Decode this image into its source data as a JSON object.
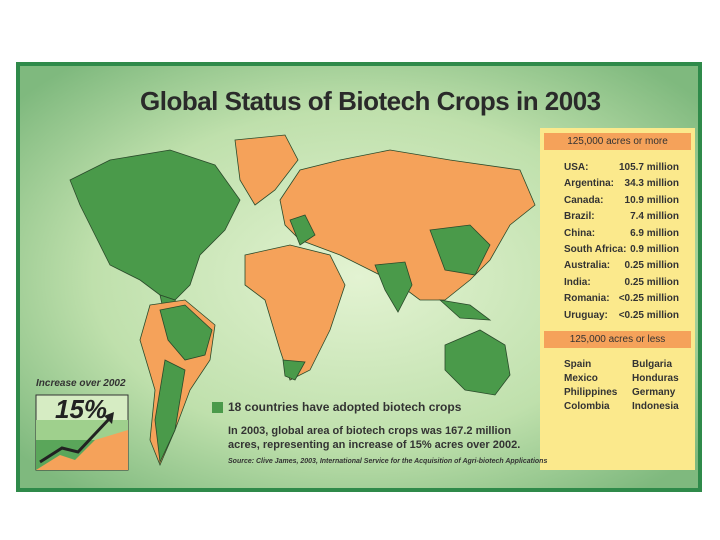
{
  "title": "Global Status of Biotech Crops in 2003",
  "large_adopters": {
    "header": "125,000 acres or more",
    "rows": [
      [
        "USA:",
        "105.7 million"
      ],
      [
        "Argentina:",
        "34.3 million"
      ],
      [
        "Canada:",
        "10.9 million"
      ],
      [
        "Brazil:",
        "7.4 million"
      ],
      [
        "China:",
        "6.9 million"
      ],
      [
        "South Africa:",
        "0.9 million"
      ],
      [
        "Australia:",
        "0.25 million"
      ],
      [
        "India:",
        "0.25 million"
      ],
      [
        "Romania:",
        "<0.25 million"
      ],
      [
        "Uruguay:",
        "<0.25 million"
      ]
    ]
  },
  "small_adopters": {
    "header": "125,000 acres or less",
    "rows": [
      [
        "Spain",
        "Bulgaria"
      ],
      [
        "Mexico",
        "Honduras"
      ],
      [
        "Philippines",
        "Germany"
      ],
      [
        "Colombia",
        "Indonesia"
      ]
    ]
  },
  "increase": {
    "label": "Increase over 2002",
    "value": "15%"
  },
  "legend": "18 countries have adopted biotech crops",
  "summary": "In 2003, global area of biotech crops was 167.2 million acres, representing an increase of 15% acres over 2002.",
  "source": "Source: Clive James, 2003, International Service for the Acquisition of Agri-biotech Applications"
}
